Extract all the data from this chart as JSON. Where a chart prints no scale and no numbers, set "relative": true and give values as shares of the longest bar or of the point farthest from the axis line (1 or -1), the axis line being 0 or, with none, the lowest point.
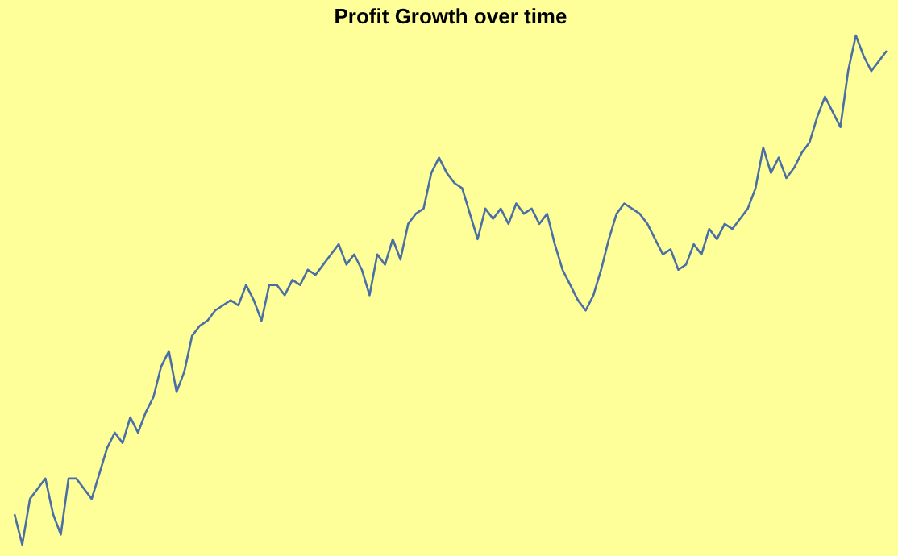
{
  "chart_data": {
    "type": "line",
    "title": "Profit Growth over time",
    "relative": true,
    "categories": [
      null,
      null,
      null,
      null,
      null,
      null,
      null,
      null,
      null,
      null,
      null,
      null,
      null,
      null,
      null,
      null,
      null,
      null,
      null,
      null,
      null,
      null,
      null,
      null,
      null,
      null,
      null,
      null,
      null,
      null,
      null,
      null,
      null,
      null,
      null,
      null,
      null,
      null,
      null,
      null,
      null,
      null,
      null,
      null,
      null,
      null,
      null,
      null,
      null,
      null,
      null,
      null,
      null,
      null,
      null,
      null,
      null,
      null,
      null,
      null,
      null,
      null,
      null,
      null,
      null,
      null,
      null,
      null,
      null,
      null,
      null,
      null,
      null,
      null,
      null,
      null,
      null,
      null,
      null,
      null,
      null,
      null,
      null,
      null,
      null,
      null,
      null,
      null,
      null,
      null,
      null,
      null,
      null,
      null,
      null,
      null,
      null,
      null,
      null,
      null,
      null,
      null,
      null,
      null,
      null,
      null,
      null,
      null,
      null,
      null,
      null,
      null,
      null,
      null
    ],
    "series": [
      {
        "color": "#4a6fa5",
        "values": [
          0.06,
          0,
          0.09,
          0.11,
          0.13,
          0.06,
          0.02,
          0.13,
          0.13,
          0.11,
          0.09,
          0.14,
          0.19,
          0.22,
          0.2,
          0.25,
          0.22,
          0.26,
          0.29,
          0.35,
          0.38,
          0.3,
          0.34,
          0.41,
          0.43,
          0.44,
          0.46,
          0.47,
          0.48,
          0.47,
          0.51,
          0.48,
          0.44,
          0.51,
          0.51,
          0.49,
          0.52,
          0.51,
          0.54,
          0.53,
          0.55,
          0.57,
          0.59,
          0.55,
          0.57,
          0.54,
          0.49,
          0.57,
          0.55,
          0.6,
          0.56,
          0.63,
          0.65,
          0.66,
          0.73,
          0.76,
          0.73,
          0.71,
          0.7,
          0.65,
          0.6,
          0.66,
          0.64,
          0.66,
          0.63,
          0.67,
          0.65,
          0.66,
          0.63,
          0.65,
          0.59,
          0.54,
          0.51,
          0.48,
          0.46,
          0.49,
          0.54,
          0.6,
          0.65,
          0.67,
          0.66,
          0.65,
          0.63,
          0.6,
          0.57,
          0.58,
          0.54,
          0.55,
          0.59,
          0.57,
          0.62,
          0.6,
          0.63,
          0.62,
          0.64,
          0.66,
          0.7,
          0.78,
          0.73,
          0.76,
          0.72,
          0.74,
          0.77,
          0.79,
          0.84,
          0.88,
          0.85,
          0.82,
          0.93,
          1,
          0.96,
          0.93,
          0.95,
          0.97
        ]
      }
    ]
  }
}
